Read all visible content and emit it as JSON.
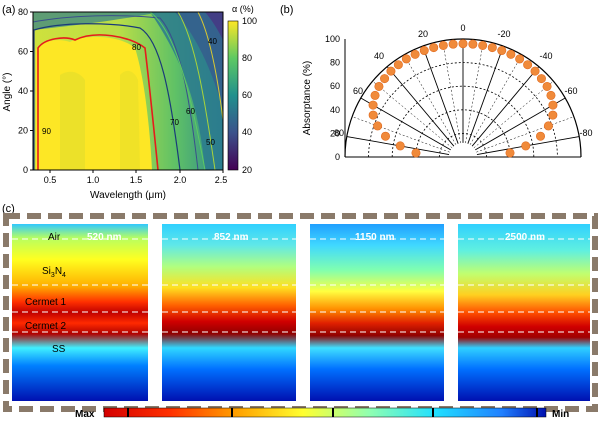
{
  "panel_a": {
    "label": "(a)",
    "ylabel": "Angle (°)",
    "xlabel": "Wavelength (μm)",
    "colorbar_title": "α (%)",
    "colorbar_ticks": [
      "100",
      "80",
      "60",
      "40",
      "20"
    ],
    "x_ticks": [
      "0.5",
      "1.0",
      "1.5",
      "2.0",
      "2.5"
    ],
    "y_ticks": [
      "80",
      "60",
      "40",
      "20",
      "0"
    ],
    "contour_labels": [
      "90",
      "80",
      "70",
      "60",
      "50",
      "40"
    ]
  },
  "panel_b": {
    "label": "(b)",
    "ylabel": "Absorptance (%)",
    "radial_ticks": [
      "100",
      "80",
      "60",
      "40",
      "20",
      "0"
    ],
    "angle_ticks": [
      "0",
      "20",
      "-20",
      "40",
      "-40",
      "60",
      "-60",
      "80",
      "-80"
    ]
  },
  "panel_c": {
    "label": "(c)",
    "layer_labels": {
      "air": "Air",
      "si3n4_main": "Si",
      "si3n4_sub1": "3",
      "si3n4_n": "N",
      "si3n4_sub2": "4",
      "cermet1": "Cermet 1",
      "cermet2": "Cermet 2",
      "ss": "SS"
    },
    "wavelength_labels": [
      "520 nm",
      "852 nm",
      "1150 nm",
      "2500 nm"
    ],
    "scale_min": "Min",
    "scale_max": "Max"
  },
  "chart_data": [
    {
      "type": "heatmap",
      "panel": "(a)",
      "xlabel": "Wavelength (μm)",
      "ylabel": "Angle (°)",
      "xlim": [
        0.3,
        2.5
      ],
      "ylim": [
        0,
        80
      ],
      "colorbar": {
        "title": "α (%)",
        "range": [
          20,
          100
        ]
      },
      "contour_levels": [
        90,
        80,
        70,
        60,
        50,
        40
      ]
    },
    {
      "type": "scatter",
      "panel": "(b)",
      "polar": true,
      "ylabel": "Absorptance (%)",
      "rlim": [
        0,
        100
      ],
      "theta": [
        -85,
        -80,
        -75,
        -70,
        -65,
        -60,
        -55,
        -50,
        -45,
        -40,
        -35,
        -30,
        -25,
        -20,
        -15,
        -10,
        -5,
        0,
        5,
        10,
        15,
        20,
        25,
        30,
        35,
        40,
        45,
        50,
        55,
        60,
        65,
        70,
        75,
        80,
        85
      ],
      "r": [
        40,
        54,
        68,
        77,
        84,
        88,
        91,
        93,
        94,
        95,
        95.5,
        96,
        96,
        96,
        96,
        96,
        96,
        96,
        96,
        96,
        96,
        96,
        96,
        96,
        95.5,
        95,
        94,
        93,
        91,
        88,
        84,
        77,
        68,
        54,
        40
      ]
    }
  ]
}
